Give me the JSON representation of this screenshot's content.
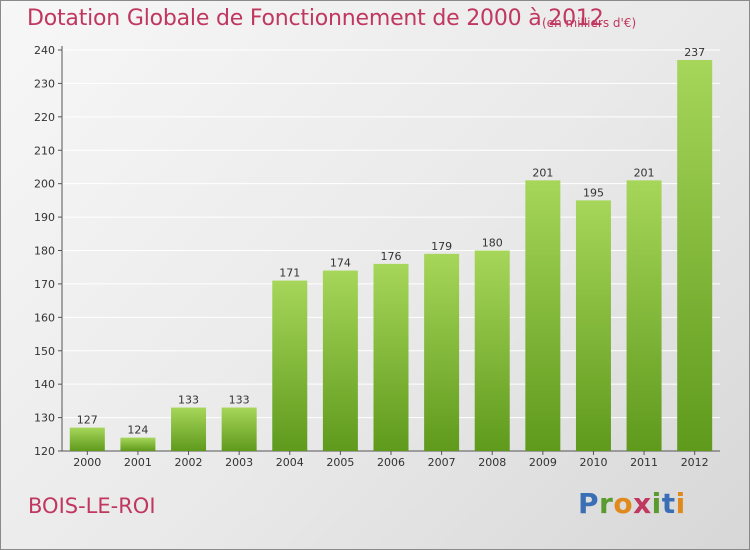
{
  "header": {
    "title": "Dotation Globale de Fonctionnement de 2000 à 2012",
    "unit": "(en milliers d'€)"
  },
  "footer": {
    "city": "BOIS-LE-ROI",
    "brand": "Proxiti"
  },
  "colors": {
    "accent": "#c0375f",
    "bar_top": "#a6d65a",
    "bar_bottom": "#5f9a1c"
  },
  "chart_data": {
    "type": "bar",
    "title": "Dotation Globale de Fonctionnement de 2000 à 2012",
    "subtitle": "(en milliers d'€)",
    "xlabel": "",
    "ylabel": "",
    "categories": [
      "2000",
      "2001",
      "2002",
      "2003",
      "2004",
      "2005",
      "2006",
      "2007",
      "2008",
      "2009",
      "2010",
      "2011",
      "2012"
    ],
    "values": [
      127,
      124,
      133,
      133,
      171,
      174,
      176,
      179,
      180,
      201,
      195,
      201,
      237
    ],
    "ylim": [
      120,
      240
    ],
    "yticks": [
      120,
      130,
      140,
      150,
      160,
      170,
      180,
      190,
      200,
      210,
      220,
      230,
      240
    ],
    "grid": true,
    "legend": "none"
  }
}
